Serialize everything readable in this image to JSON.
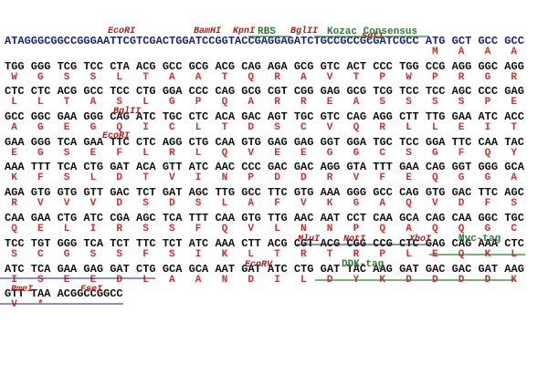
{
  "sequence_lines": [
    {
      "bases": "ATAGGGCGGCCGGGAATTCGTCGACTGGATCCGGTACCGAGGAGATCTGCCGCCGCGATCGCC ATG GCT GCC GCC",
      "amino_acids": [
        "M",
        "A",
        "A",
        "A"
      ]
    },
    {
      "bases": "TGG GGG TCG TCC CTA ACG GCC GCG ACG CAG AGA GCG GTC ACT CCC TGG CCG AGG GGC AGG",
      "amino_acids": [
        "W",
        "G",
        "S",
        "S",
        "L",
        "T",
        "A",
        "A",
        "T",
        "Q",
        "R",
        "A",
        "V",
        "T",
        "P",
        "W",
        "P",
        "R",
        "G",
        "R"
      ]
    },
    {
      "bases": "CTC CTC ACG GCC TCC CTG GGA CCC CAG GCG CGT CGG GAG GCG TCG TCC TCC AGC CCC GAG",
      "amino_acids": [
        "L",
        "L",
        "T",
        "A",
        "S",
        "L",
        "G",
        "P",
        "Q",
        "A",
        "R",
        "R",
        "E",
        "A",
        "S",
        "S",
        "S",
        "S",
        "P",
        "E"
      ]
    },
    {
      "bases": "GCC GGC GAA GGG CAG ATC TGC CTC ACA GAC AGT TGC GTC CAG AGG CTT TTG GAA ATC ACC",
      "amino_acids": [
        "A",
        "G",
        "E",
        "G",
        "Q",
        "I",
        "C",
        "L",
        "T",
        "D",
        "S",
        "C",
        "V",
        "Q",
        "R",
        "L",
        "L",
        "E",
        "I",
        "T"
      ]
    },
    {
      "bases": "GAA GGG TCA GAA TTC CTC AGG CTG CAA GTG GAG GAG GGT GGA TGC TCC GGA TTC CAA TAC",
      "amino_acids": [
        "E",
        "G",
        "S",
        "E",
        "F",
        "L",
        "R",
        "L",
        "Q",
        "V",
        "E",
        "E",
        "G",
        "G",
        "C",
        "S",
        "G",
        "F",
        "Q",
        "Y"
      ]
    },
    {
      "bases": "AAA TTT TCA CTG GAT ACA GTT ATC AAC CCC GAC GAC AGG GTA TTT GAA CAG GGT GGG GCA",
      "amino_acids": [
        "K",
        "F",
        "S",
        "L",
        "D",
        "T",
        "V",
        "I",
        "N",
        "P",
        "D",
        "D",
        "R",
        "V",
        "F",
        "E",
        "Q",
        "G",
        "G",
        "A"
      ]
    },
    {
      "bases": "AGA GTG GTG GTT GAC TCT GAT AGC TTG GCC TTC GTG AAA GGG GCC CAG GTG GAC TTC AGC",
      "amino_acids": [
        "R",
        "V",
        "V",
        "V",
        "D",
        "S",
        "D",
        "S",
        "L",
        "A",
        "F",
        "V",
        "K",
        "G",
        "A",
        "Q",
        "V",
        "D",
        "F",
        "S"
      ]
    },
    {
      "bases": "CAA GAA CTG ATC CGA AGC TCA TTT CAA GTG TTG AAC AAT CCT CAA GCA CAG CAA GGC TGC",
      "amino_acids": [
        "Q",
        "E",
        "L",
        "I",
        "R",
        "S",
        "S",
        "F",
        "Q",
        "V",
        "L",
        "N",
        "N",
        "P",
        "Q",
        "A",
        "Q",
        "Q",
        "G",
        "C"
      ]
    },
    {
      "bases": "TCC TGT GGG TCA TCT TTC TCT ATC AAA CTT ACG CGT ACG CGG CCG CTC GAG CAG AAA CTC",
      "amino_acids": [
        "S",
        "C",
        "G",
        "S",
        "S",
        "F",
        "S",
        "I",
        "K",
        "L",
        "T",
        "R",
        "T",
        "R",
        "P",
        "L",
        "E",
        "Q",
        "K",
        "L"
      ]
    },
    {
      "bases": "ATC TCA GAA GAG GAT CTG GCA GCA AAT GAT ATC CTG GAT TAC AAG GAT GAC GAC GAT AAG",
      "amino_acids": [
        "I",
        "S",
        "E",
        "E",
        "D",
        "L",
        "A",
        "A",
        "N",
        "D",
        "I",
        "L",
        "D",
        "Y",
        "K",
        "D",
        "D",
        "D",
        "D",
        "K"
      ]
    },
    {
      "bases": "GTT TAA ACGGCCGGCC",
      "amino_acids": [
        "V",
        "*"
      ]
    }
  ],
  "restriction_sites": [
    "EcoRI",
    "BamHI",
    "KpnI",
    "BglII",
    "SgfI",
    "BglII",
    "EcoRI",
    "MluI",
    "NotI",
    "XhoI",
    "EcoRV",
    "PmeI",
    "FseI"
  ],
  "tags": [
    "RBS",
    "Kozac Consensus",
    "Myc-tag",
    "DDK-tag"
  ]
}
